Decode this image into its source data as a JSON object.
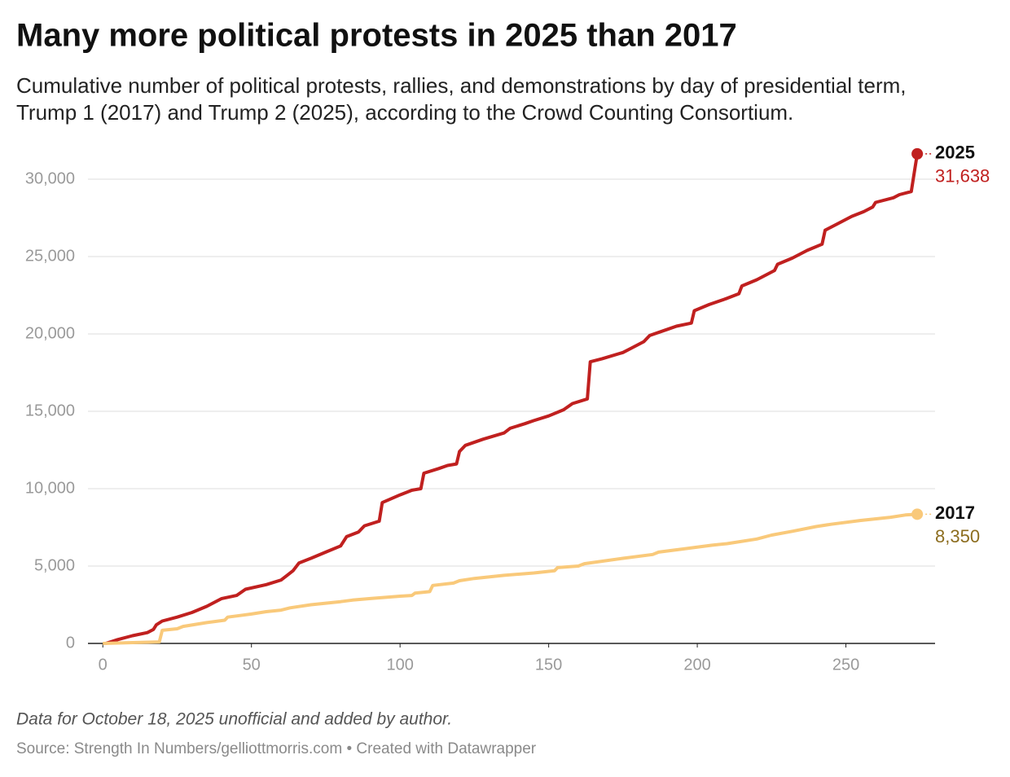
{
  "chart_data": {
    "type": "line",
    "title": "Many more political protests in 2025 than 2017",
    "subtitle": [
      "Cumulative number of political protests, rallies, and demonstrations by day of presidential term,",
      "Trump 1 (2017) and Trump 2 (2025), according to the Crowd Counting Consortium."
    ],
    "note": "Data for October 18, 2025 unofficial and added by author.",
    "source": "Source: Strength In Numbers/gelliottmorris.com • Created with Datawrapper",
    "xlim": [
      -5,
      280
    ],
    "ylim": [
      0,
      32000
    ],
    "xticks": [
      0,
      50,
      100,
      150,
      200,
      250
    ],
    "yticks": [
      0,
      {
        "value": 5000,
        "label": "5,000"
      },
      {
        "value": 10000,
        "label": "10,000"
      },
      {
        "value": 15000,
        "label": "15,000"
      },
      {
        "value": 20000,
        "label": "20,000"
      },
      {
        "value": 25000,
        "label": "25,000"
      },
      {
        "value": 30000,
        "label": "30,000"
      }
    ],
    "grid": true,
    "series": [
      {
        "name": "2025",
        "color": "#c0201f",
        "label_color": "#c0201f",
        "last_label": "31,638",
        "x": [
          1,
          5,
          10,
          15,
          17,
          18,
          20,
          25,
          30,
          35,
          40,
          45,
          48,
          55,
          60,
          62,
          64,
          66,
          70,
          75,
          80,
          82,
          86,
          88,
          93,
          94,
          100,
          104,
          107,
          108,
          113,
          116,
          119,
          120,
          122,
          128,
          135,
          137,
          142,
          145,
          150,
          155,
          158,
          163,
          164,
          168,
          175,
          178,
          182,
          184,
          190,
          193,
          198,
          199,
          204,
          210,
          214,
          215,
          220,
          226,
          227,
          232,
          237,
          242,
          243,
          247,
          252,
          256,
          259,
          260,
          266,
          268,
          272,
          274
        ],
        "values": [
          0,
          250,
          500,
          700,
          900,
          1200,
          1450,
          1700,
          2000,
          2400,
          2900,
          3100,
          3500,
          3800,
          4100,
          4400,
          4700,
          5200,
          5500,
          5900,
          6300,
          6900,
          7200,
          7600,
          7900,
          9100,
          9600,
          9900,
          10000,
          11000,
          11300,
          11500,
          11600,
          12400,
          12800,
          13200,
          13600,
          13900,
          14200,
          14400,
          14700,
          15100,
          15500,
          15800,
          18200,
          18400,
          18800,
          19100,
          19500,
          19900,
          20300,
          20500,
          20700,
          21500,
          21900,
          22300,
          22600,
          23100,
          23500,
          24100,
          24500,
          24900,
          25400,
          25800,
          26700,
          27100,
          27600,
          27900,
          28200,
          28500,
          28800,
          29000,
          29200,
          31638
        ]
      },
      {
        "name": "2017",
        "color": "#f9c97a",
        "label_color": "#8c6d1f",
        "last_label": "8,350",
        "x": [
          0,
          10,
          19,
          20,
          25,
          27,
          35,
          41,
          42,
          46,
          50,
          55,
          60,
          63,
          70,
          80,
          84,
          90,
          100,
          104,
          105,
          110,
          111,
          118,
          120,
          125,
          135,
          145,
          152,
          153,
          160,
          162,
          175,
          185,
          187,
          195,
          205,
          210,
          220,
          225,
          232,
          240,
          245,
          255,
          265,
          270,
          274
        ],
        "values": [
          0,
          50,
          100,
          850,
          950,
          1100,
          1350,
          1500,
          1700,
          1800,
          1900,
          2050,
          2150,
          2300,
          2500,
          2700,
          2800,
          2900,
          3050,
          3100,
          3250,
          3350,
          3750,
          3900,
          4050,
          4200,
          4400,
          4550,
          4700,
          4900,
          5000,
          5150,
          5500,
          5750,
          5900,
          6100,
          6350,
          6450,
          6750,
          7000,
          7250,
          7550,
          7700,
          7950,
          8150,
          8300,
          8350
        ]
      }
    ]
  }
}
